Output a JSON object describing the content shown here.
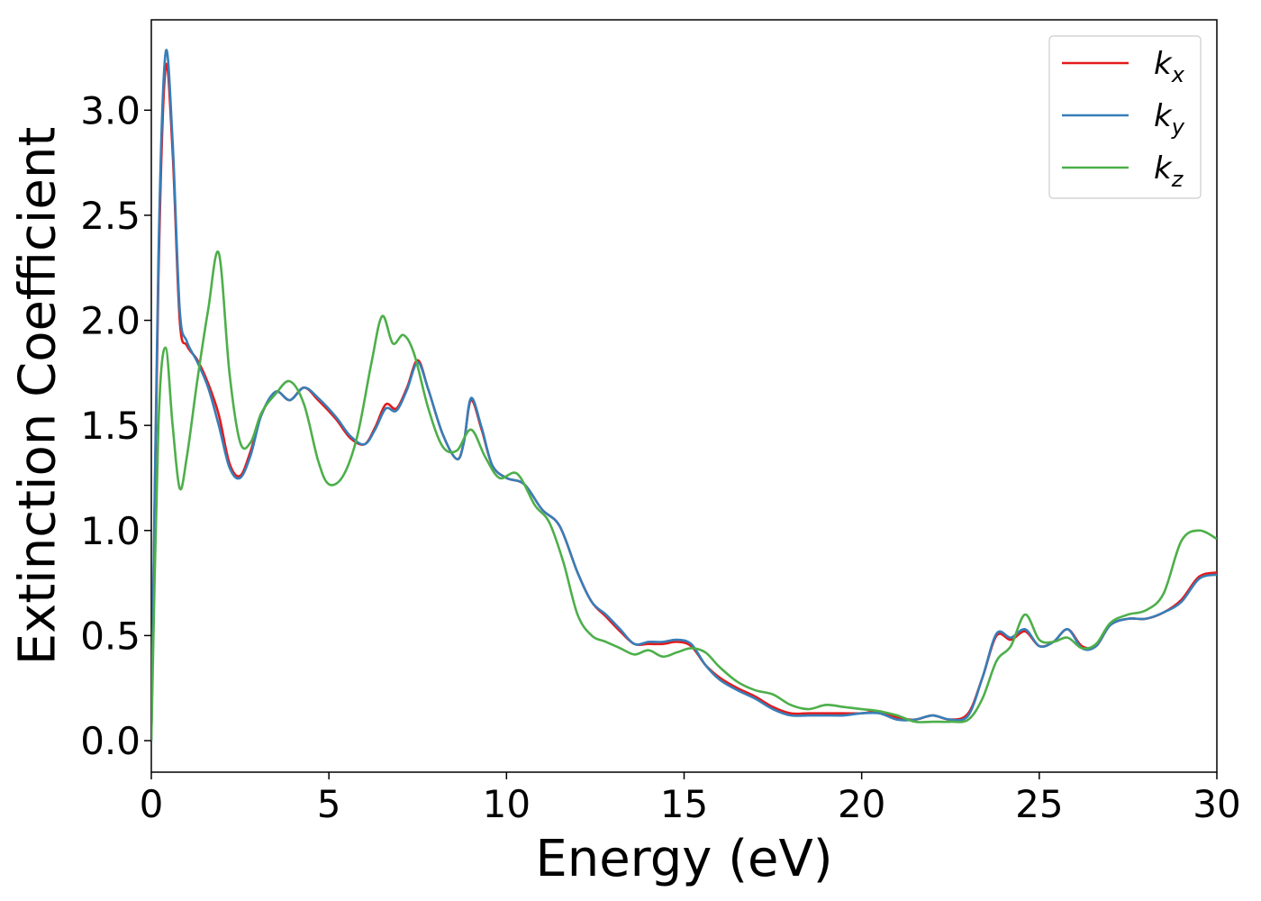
{
  "chart_data": {
    "type": "line",
    "title": "",
    "xlabel": "Energy (eV)",
    "ylabel": "Extinction Coefficient",
    "xlim": [
      0,
      30
    ],
    "ylim": [
      -0.15,
      3.43
    ],
    "xticks": [
      0,
      5,
      10,
      15,
      20,
      25,
      30
    ],
    "xtick_labels": [
      "0",
      "5",
      "10",
      "15",
      "20",
      "25",
      "30"
    ],
    "yticks": [
      0.0,
      0.5,
      1.0,
      1.5,
      2.0,
      2.5,
      3.0
    ],
    "ytick_labels": [
      "0.0",
      "0.5",
      "1.0",
      "1.5",
      "2.0",
      "2.5",
      "3.0"
    ],
    "grid": false,
    "legend_position": "top-right",
    "series": [
      {
        "name": "k",
        "subscript": "x",
        "color": "#e41a1c",
        "x": [
          0,
          0.2,
          0.4,
          0.6,
          0.8,
          1.0,
          1.3,
          1.6,
          1.9,
          2.2,
          2.5,
          2.8,
          3.1,
          3.5,
          3.9,
          4.3,
          4.7,
          5.2,
          5.6,
          6.0,
          6.3,
          6.6,
          6.9,
          7.2,
          7.5,
          7.8,
          8.2,
          8.6,
          8.8,
          9.0,
          9.3,
          9.6,
          10.0,
          10.5,
          11.0,
          11.5,
          12.0,
          12.4,
          12.8,
          13.2,
          13.6,
          14.0,
          14.4,
          14.8,
          15.2,
          15.6,
          16.0,
          16.5,
          17.0,
          17.5,
          18.0,
          18.5,
          19.0,
          19.5,
          20.0,
          20.5,
          21.0,
          21.5,
          22.0,
          22.5,
          23.0,
          23.4,
          23.8,
          24.2,
          24.6,
          25.0,
          25.4,
          25.8,
          26.2,
          26.6,
          27.0,
          27.5,
          28.0,
          28.5,
          29.0,
          29.5,
          30.0
        ],
        "y": [
          0.0,
          2.2,
          3.2,
          2.8,
          2.0,
          1.88,
          1.81,
          1.7,
          1.55,
          1.32,
          1.26,
          1.38,
          1.55,
          1.66,
          1.62,
          1.68,
          1.62,
          1.53,
          1.44,
          1.41,
          1.49,
          1.6,
          1.58,
          1.68,
          1.81,
          1.67,
          1.46,
          1.34,
          1.42,
          1.62,
          1.48,
          1.31,
          1.25,
          1.22,
          1.1,
          1.02,
          0.8,
          0.66,
          0.59,
          0.52,
          0.46,
          0.46,
          0.46,
          0.47,
          0.45,
          0.36,
          0.3,
          0.25,
          0.21,
          0.16,
          0.13,
          0.13,
          0.13,
          0.13,
          0.13,
          0.14,
          0.11,
          0.1,
          0.12,
          0.1,
          0.13,
          0.3,
          0.5,
          0.48,
          0.52,
          0.45,
          0.47,
          0.53,
          0.45,
          0.45,
          0.55,
          0.58,
          0.58,
          0.61,
          0.67,
          0.78,
          0.8
        ]
      },
      {
        "name": "k",
        "subscript": "y",
        "color": "#377eb8",
        "x": [
          0,
          0.2,
          0.4,
          0.6,
          0.8,
          1.0,
          1.3,
          1.6,
          1.9,
          2.2,
          2.5,
          2.8,
          3.1,
          3.5,
          3.9,
          4.3,
          4.7,
          5.2,
          5.6,
          6.0,
          6.3,
          6.6,
          6.9,
          7.2,
          7.5,
          7.8,
          8.2,
          8.6,
          8.8,
          9.0,
          9.3,
          9.6,
          10.0,
          10.5,
          11.0,
          11.5,
          12.0,
          12.4,
          12.8,
          13.2,
          13.6,
          14.0,
          14.4,
          14.8,
          15.2,
          15.6,
          16.0,
          16.5,
          17.0,
          17.5,
          18.0,
          18.5,
          19.0,
          19.5,
          20.0,
          20.5,
          21.0,
          21.5,
          22.0,
          22.5,
          23.0,
          23.4,
          23.8,
          24.2,
          24.6,
          25.0,
          25.4,
          25.8,
          26.2,
          26.6,
          27.0,
          27.5,
          28.0,
          28.5,
          29.0,
          29.5,
          30.0
        ],
        "y": [
          0.0,
          2.3,
          3.27,
          2.85,
          2.05,
          1.9,
          1.8,
          1.68,
          1.5,
          1.3,
          1.25,
          1.36,
          1.55,
          1.66,
          1.62,
          1.68,
          1.63,
          1.54,
          1.45,
          1.41,
          1.48,
          1.58,
          1.57,
          1.67,
          1.8,
          1.67,
          1.46,
          1.34,
          1.42,
          1.63,
          1.49,
          1.31,
          1.25,
          1.22,
          1.1,
          1.02,
          0.8,
          0.66,
          0.6,
          0.53,
          0.46,
          0.47,
          0.47,
          0.48,
          0.46,
          0.36,
          0.29,
          0.24,
          0.2,
          0.15,
          0.12,
          0.12,
          0.12,
          0.12,
          0.13,
          0.13,
          0.1,
          0.1,
          0.12,
          0.1,
          0.12,
          0.3,
          0.51,
          0.49,
          0.53,
          0.45,
          0.47,
          0.53,
          0.44,
          0.45,
          0.55,
          0.58,
          0.58,
          0.61,
          0.66,
          0.77,
          0.79
        ]
      },
      {
        "name": "k",
        "subscript": "z",
        "color": "#4daf4a",
        "x": [
          0,
          0.2,
          0.4,
          0.6,
          0.8,
          1.0,
          1.3,
          1.6,
          1.9,
          2.2,
          2.5,
          2.8,
          3.1,
          3.5,
          3.9,
          4.3,
          4.7,
          5.0,
          5.4,
          5.8,
          6.2,
          6.5,
          6.8,
          7.1,
          7.4,
          7.8,
          8.2,
          8.6,
          9.0,
          9.4,
          9.8,
          10.3,
          10.8,
          11.2,
          11.6,
          12.0,
          12.4,
          12.8,
          13.2,
          13.6,
          14.0,
          14.4,
          14.8,
          15.2,
          15.6,
          16.0,
          16.5,
          17.0,
          17.5,
          18.0,
          18.5,
          19.0,
          19.5,
          20.0,
          20.5,
          21.0,
          21.5,
          22.0,
          22.5,
          23.0,
          23.4,
          23.8,
          24.2,
          24.6,
          25.0,
          25.4,
          25.8,
          26.2,
          26.6,
          27.0,
          27.5,
          28.0,
          28.5,
          29.0,
          29.5,
          30.0
        ],
        "y": [
          0.0,
          1.5,
          1.87,
          1.5,
          1.2,
          1.35,
          1.72,
          2.05,
          2.32,
          1.75,
          1.42,
          1.42,
          1.56,
          1.65,
          1.71,
          1.6,
          1.33,
          1.22,
          1.26,
          1.45,
          1.8,
          2.02,
          1.89,
          1.93,
          1.84,
          1.58,
          1.4,
          1.38,
          1.48,
          1.35,
          1.25,
          1.27,
          1.12,
          1.04,
          0.85,
          0.6,
          0.5,
          0.47,
          0.44,
          0.41,
          0.43,
          0.4,
          0.42,
          0.44,
          0.42,
          0.35,
          0.28,
          0.24,
          0.22,
          0.17,
          0.15,
          0.17,
          0.16,
          0.15,
          0.14,
          0.12,
          0.09,
          0.09,
          0.09,
          0.1,
          0.2,
          0.38,
          0.45,
          0.6,
          0.48,
          0.47,
          0.49,
          0.44,
          0.46,
          0.56,
          0.6,
          0.62,
          0.7,
          0.95,
          1.0,
          0.96
        ]
      }
    ]
  }
}
